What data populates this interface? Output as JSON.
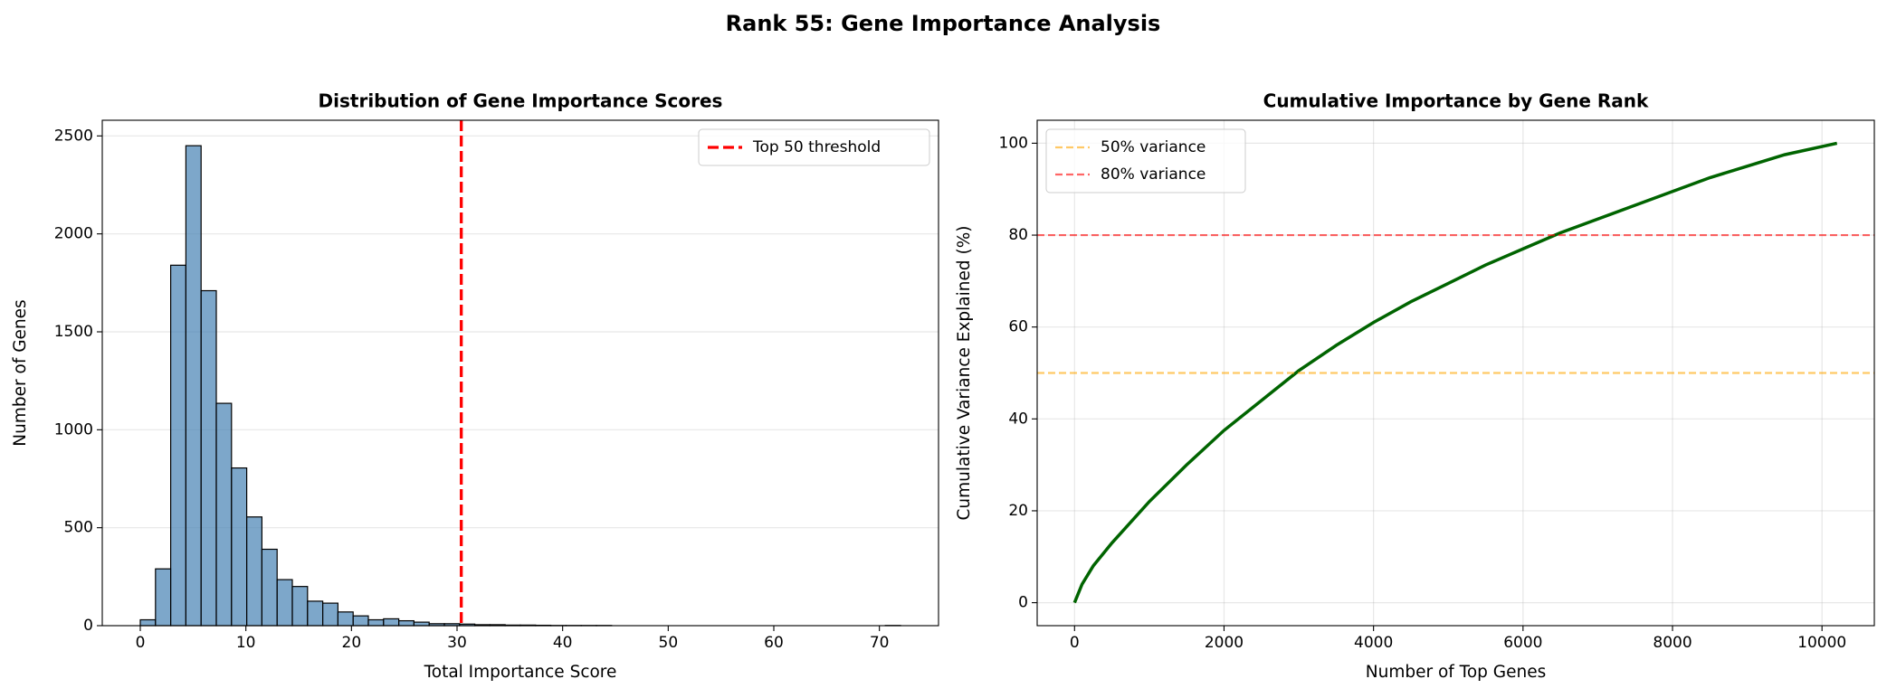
{
  "title": "Rank 55: Gene Importance Analysis",
  "chart_data": [
    {
      "type": "histogram",
      "title": "Distribution of Gene Importance Scores",
      "xlabel": "Total Importance Score",
      "ylabel": "Number of Genes",
      "bins": [
        0,
        1.44,
        2.88,
        4.32,
        5.76,
        7.2,
        8.64,
        10.08,
        11.52,
        12.96,
        14.4,
        15.84,
        17.28,
        18.72,
        20.16,
        21.6,
        23.04,
        24.48,
        25.92,
        27.36,
        28.8,
        30.24,
        31.68,
        33.12,
        34.56,
        36,
        37.44,
        38.88,
        40.32,
        41.76,
        43.2,
        44.64,
        46.08,
        47.52,
        48.96,
        50.4,
        51.84,
        53.28,
        54.72,
        56.16,
        57.6,
        59.04,
        60.48,
        61.92,
        63.36,
        64.8,
        66.24,
        67.68,
        69.12,
        70.56,
        72
      ],
      "values": [
        30,
        290,
        1840,
        2450,
        1710,
        1135,
        805,
        555,
        390,
        235,
        200,
        125,
        115,
        70,
        50,
        30,
        35,
        25,
        18,
        10,
        10,
        8,
        5,
        5,
        3,
        3,
        2,
        1,
        1,
        1,
        1,
        0,
        0,
        0,
        0,
        0,
        0,
        0,
        0,
        0,
        0,
        0,
        0,
        0,
        0,
        0,
        0,
        0,
        0,
        1
      ],
      "color": "#4682b4",
      "xlim": [
        -3.6,
        75.6
      ],
      "xticks": [
        0,
        10,
        20,
        30,
        40,
        50,
        60,
        70
      ],
      "ylim": [
        0,
        2580
      ],
      "yticks": [
        0,
        500,
        1000,
        1500,
        2000,
        2500
      ],
      "grid": "y",
      "vlines": [
        {
          "x": 30.4,
          "label": "Top 50 threshold",
          "color": "#ff0000"
        }
      ],
      "legend": "upper right"
    },
    {
      "type": "line",
      "title": "Cumulative Importance by Gene Rank",
      "xlabel": "Number of Top Genes",
      "ylabel": "Cumulative Variance Explained (%)",
      "x": [
        0,
        100,
        250,
        500,
        1000,
        1500,
        2000,
        2500,
        3000,
        3500,
        4000,
        4500,
        5000,
        5500,
        6000,
        6500,
        7000,
        7500,
        8000,
        8500,
        9000,
        9500,
        10200
      ],
      "values": [
        0,
        4,
        8,
        13,
        22,
        30,
        37.5,
        44,
        50.5,
        56,
        61,
        65.5,
        69.5,
        73.5,
        77,
        80.5,
        83.5,
        86.5,
        89.5,
        92.5,
        95,
        97.5,
        100
      ],
      "color": "#006400",
      "xlim": [
        -500,
        10700
      ],
      "xticks": [
        0,
        2000,
        4000,
        6000,
        8000,
        10000
      ],
      "ylim": [
        -5,
        105
      ],
      "yticks": [
        0,
        20,
        40,
        60,
        80,
        100
      ],
      "grid": "both",
      "hlines": [
        {
          "y": 50,
          "label": "50% variance",
          "color": "#ffa500"
        },
        {
          "y": 80,
          "label": "80% variance",
          "color": "#ff0000"
        }
      ],
      "legend": "upper left"
    }
  ]
}
